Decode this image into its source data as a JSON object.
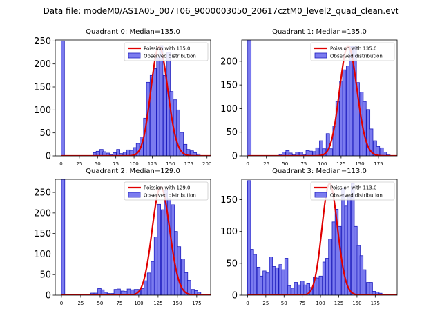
{
  "figure_title": "Data file: modeM0/AS1A05_007T06_9000003050_20617cztM0_level2_quad_clean.evt",
  "colors": {
    "bar_fill": "#7b7bef",
    "bar_edge": "#1f1fbf",
    "poisson_line": "#e00000"
  },
  "chart_data": [
    {
      "type": "bar",
      "title": "Quadrant 0: Median=135.0",
      "xlim": [
        -8,
        205
      ],
      "ylim": [
        0,
        252
      ],
      "xticks": [
        0,
        25,
        50,
        75,
        100,
        125,
        150,
        175,
        200
      ],
      "yticks": [
        0,
        50,
        100,
        150,
        200,
        250
      ],
      "bin_width": 4.6,
      "legend": {
        "line": "Poission with 135.0",
        "bars": "Observed distribution",
        "position": "top-right"
      },
      "poisson": {
        "mean": 135.0,
        "peak": 237
      },
      "bins": [
        [
          0,
          250
        ],
        [
          44,
          7
        ],
        [
          48,
          10
        ],
        [
          53,
          14
        ],
        [
          57,
          9
        ],
        [
          62,
          6
        ],
        [
          66,
          3
        ],
        [
          71,
          7
        ],
        [
          76,
          14
        ],
        [
          80,
          5
        ],
        [
          85,
          8
        ],
        [
          90,
          13
        ],
        [
          94,
          12
        ],
        [
          99,
          18
        ],
        [
          103,
          27
        ],
        [
          108,
          41
        ],
        [
          113,
          82
        ],
        [
          117,
          160
        ],
        [
          122,
          175
        ],
        [
          126,
          190
        ],
        [
          131,
          215
        ],
        [
          135,
          240
        ],
        [
          140,
          175
        ],
        [
          145,
          225
        ],
        [
          149,
          140
        ],
        [
          154,
          122
        ],
        [
          158,
          100
        ],
        [
          163,
          51
        ],
        [
          168,
          25
        ],
        [
          172,
          14
        ],
        [
          177,
          11
        ],
        [
          181,
          7
        ],
        [
          186,
          4
        ]
      ]
    },
    {
      "type": "bar",
      "title": "Quadrant 1: Median=135.0",
      "xlim": [
        -8,
        200
      ],
      "ylim": [
        0,
        245
      ],
      "xticks": [
        0,
        25,
        50,
        75,
        100,
        125,
        150,
        175
      ],
      "yticks": [
        0,
        50,
        100,
        150,
        200
      ],
      "bin_width": 4.6,
      "legend": {
        "line": "Poission with 135.0",
        "bars": "Observed distribution",
        "position": "top-right"
      },
      "poisson": {
        "mean": 135.0,
        "peak": 232
      },
      "bins": [
        [
          0,
          245
        ],
        [
          42,
          3
        ],
        [
          46,
          8
        ],
        [
          51,
          11
        ],
        [
          55,
          6
        ],
        [
          60,
          3
        ],
        [
          64,
          8
        ],
        [
          69,
          8
        ],
        [
          73,
          3
        ],
        [
          78,
          11
        ],
        [
          82,
          10
        ],
        [
          87,
          9
        ],
        [
          91,
          17
        ],
        [
          96,
          32
        ],
        [
          100,
          15
        ],
        [
          105,
          47
        ],
        [
          109,
          15
        ],
        [
          114,
          63
        ],
        [
          118,
          115
        ],
        [
          123,
          158
        ],
        [
          127,
          182
        ],
        [
          132,
          190
        ],
        [
          136,
          232
        ],
        [
          141,
          232
        ],
        [
          145,
          155
        ],
        [
          150,
          135
        ],
        [
          154,
          115
        ],
        [
          159,
          98
        ],
        [
          163,
          57
        ],
        [
          168,
          32
        ],
        [
          172,
          20
        ],
        [
          177,
          17
        ],
        [
          181,
          8
        ],
        [
          186,
          3
        ]
      ]
    },
    {
      "type": "bar",
      "title": "Quadrant 2: Median=129.0",
      "xlim": [
        -8,
        193
      ],
      "ylim": [
        0,
        282
      ],
      "xticks": [
        0,
        25,
        50,
        75,
        100,
        125,
        150,
        175
      ],
      "yticks": [
        0,
        50,
        100,
        150,
        200,
        250
      ],
      "bin_width": 4.3,
      "legend": {
        "line": "Poission with 129.0",
        "bars": "Observed distribution",
        "position": "top-right"
      },
      "poisson": {
        "mean": 129.0,
        "peak": 263
      },
      "bins": [
        [
          0,
          282
        ],
        [
          38,
          5
        ],
        [
          42,
          5
        ],
        [
          47,
          16
        ],
        [
          51,
          13
        ],
        [
          55,
          7
        ],
        [
          59,
          4
        ],
        [
          64,
          4
        ],
        [
          68,
          14
        ],
        [
          72,
          15
        ],
        [
          77,
          10
        ],
        [
          81,
          9
        ],
        [
          85,
          15
        ],
        [
          90,
          13
        ],
        [
          94,
          14
        ],
        [
          98,
          14
        ],
        [
          103,
          16
        ],
        [
          107,
          35
        ],
        [
          111,
          54
        ],
        [
          116,
          82
        ],
        [
          120,
          142
        ],
        [
          124,
          221
        ],
        [
          129,
          208
        ],
        [
          133,
          255
        ],
        [
          137,
          235
        ],
        [
          142,
          220
        ],
        [
          146,
          155
        ],
        [
          150,
          118
        ],
        [
          155,
          88
        ],
        [
          159,
          55
        ],
        [
          163,
          36
        ],
        [
          168,
          14
        ],
        [
          172,
          11
        ],
        [
          176,
          7
        ]
      ]
    },
    {
      "type": "bar",
      "title": "Quadrant 3: Median=113.0",
      "xlim": [
        -8,
        205
      ],
      "ylim": [
        0,
        182
      ],
      "xticks": [
        0,
        25,
        50,
        75,
        100,
        125,
        150,
        175
      ],
      "yticks": [
        0,
        50,
        100,
        150
      ],
      "bin_width": 4.3,
      "legend": {
        "line": "Poission with 113.0",
        "bars": "Observed distribution",
        "position": "top-right"
      },
      "poisson": {
        "mean": 113.0,
        "peak": 175
      },
      "bins": [
        [
          0,
          180
        ],
        [
          4,
          72
        ],
        [
          8,
          64
        ],
        [
          13,
          44
        ],
        [
          17,
          30
        ],
        [
          21,
          38
        ],
        [
          25,
          35
        ],
        [
          30,
          60
        ],
        [
          34,
          45
        ],
        [
          38,
          43
        ],
        [
          43,
          48
        ],
        [
          47,
          40
        ],
        [
          51,
          58
        ],
        [
          55,
          15
        ],
        [
          60,
          11
        ],
        [
          64,
          20
        ],
        [
          68,
          16
        ],
        [
          73,
          22
        ],
        [
          77,
          16
        ],
        [
          81,
          18
        ],
        [
          85,
          12
        ],
        [
          90,
          28
        ],
        [
          94,
          27
        ],
        [
          98,
          30
        ],
        [
          103,
          52
        ],
        [
          107,
          58
        ],
        [
          111,
          88
        ],
        [
          116,
          115
        ],
        [
          120,
          135
        ],
        [
          124,
          108
        ],
        [
          129,
          168
        ],
        [
          133,
          140
        ],
        [
          137,
          155
        ],
        [
          142,
          175
        ],
        [
          146,
          108
        ],
        [
          150,
          78
        ],
        [
          154,
          62
        ],
        [
          158,
          40
        ],
        [
          163,
          20
        ],
        [
          167,
          20
        ],
        [
          171,
          6
        ],
        [
          176,
          5
        ],
        [
          180,
          3
        ],
        [
          184,
          1
        ]
      ]
    }
  ]
}
